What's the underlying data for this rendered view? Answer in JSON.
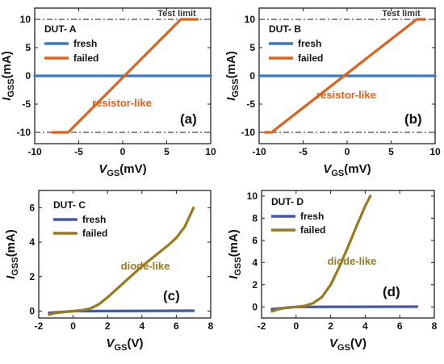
{
  "figure_colors": {
    "fresh": "#3a7ac2",
    "failed_resistor": "#e0621a",
    "failed_diode": "#9a7a1a",
    "fresh_diode": "#4059a8",
    "limit": "#444444"
  },
  "chart_data": [
    {
      "id": "a",
      "type": "line",
      "panel_label": "(a)",
      "dut": "DUT- A",
      "xlabel": {
        "main": "V",
        "sub": "GS",
        "unit": "(mV)"
      },
      "ylabel": {
        "main": "I",
        "sub": "GSS",
        "unit": "(mA)"
      },
      "xlim": [
        -10,
        10
      ],
      "ylim": [
        -12,
        12
      ],
      "xticks": [
        -10,
        -5,
        0,
        5,
        10
      ],
      "xtick_labels": [
        "-10",
        "-5",
        "0",
        "5",
        "10"
      ],
      "yticks": [
        -10,
        -5,
        0,
        5,
        10
      ],
      "ytick_labels": [
        "-10",
        "-5",
        "0",
        "5",
        "10"
      ],
      "test_limit": {
        "label": "Test limit",
        "values": [
          10,
          -10
        ]
      },
      "annotation": "resistor-like",
      "series": [
        {
          "name": "fresh",
          "color": "#3a7ac2",
          "x": [
            -10,
            10
          ],
          "y": [
            0,
            0
          ]
        },
        {
          "name": "failed",
          "color": "#e0621a",
          "x": [
            -8,
            -6.2,
            6.6,
            8.5
          ],
          "y": [
            -10,
            -10,
            10,
            10
          ]
        }
      ]
    },
    {
      "id": "b",
      "type": "line",
      "panel_label": "(b)",
      "dut": "DUT- B",
      "xlabel": {
        "main": "V",
        "sub": "GS",
        "unit": "(mV)"
      },
      "ylabel": {
        "main": "I",
        "sub": "GSS",
        "unit": "(mA)"
      },
      "xlim": [
        -10,
        10
      ],
      "ylim": [
        -12,
        12
      ],
      "xticks": [
        -10,
        -5,
        0,
        5,
        10
      ],
      "xtick_labels": [
        "-10",
        "-5",
        "0",
        "5",
        "10"
      ],
      "yticks": [
        -10,
        -5,
        0,
        5,
        10
      ],
      "ytick_labels": [
        "-10",
        "-5",
        "0",
        "5",
        "10"
      ],
      "test_limit": {
        "label": "Test limit",
        "values": [
          10,
          -10
        ]
      },
      "annotation": "resistor-like",
      "series": [
        {
          "name": "fresh",
          "color": "#3a7ac2",
          "x": [
            -10,
            10
          ],
          "y": [
            0,
            0
          ]
        },
        {
          "name": "failed",
          "color": "#e0621a",
          "x": [
            -9.3,
            -8.6,
            7.9,
            8.8
          ],
          "y": [
            -10,
            -10,
            10,
            10
          ]
        }
      ]
    },
    {
      "id": "c",
      "type": "line",
      "panel_label": "(c)",
      "dut": "DUT- C",
      "xlabel": {
        "main": "V",
        "sub": "GS",
        "unit": "(V)"
      },
      "ylabel": {
        "main": "I",
        "sub": "GSS",
        "unit": "(mA)"
      },
      "xlim": [
        -2,
        8
      ],
      "ylim": [
        -0.4,
        7
      ],
      "xticks": [
        -2,
        0,
        2,
        4,
        6,
        8
      ],
      "xtick_labels": [
        "-2",
        "0",
        "2",
        "4",
        "6",
        "8"
      ],
      "yticks": [
        0,
        2,
        4,
        6
      ],
      "ytick_labels": [
        "0",
        "2",
        "4",
        "6"
      ],
      "annotation": "diode-like",
      "series": [
        {
          "name": "fresh",
          "color": "#4059a8",
          "x": [
            -1.4,
            0,
            7
          ],
          "y": [
            -0.1,
            0,
            0.02
          ]
        },
        {
          "name": "failed",
          "color": "#9a7a1a",
          "x": [
            -1.4,
            -1,
            -0.5,
            0,
            0.5,
            1,
            1.5,
            2,
            2.5,
            3,
            3.5,
            4,
            4.5,
            5,
            5.5,
            6,
            6.5,
            7
          ],
          "y": [
            -0.2,
            -0.1,
            -0.05,
            0,
            0.05,
            0.15,
            0.4,
            0.8,
            1.25,
            1.7,
            2.15,
            2.6,
            3.0,
            3.4,
            3.8,
            4.25,
            4.9,
            6.0
          ]
        }
      ]
    },
    {
      "id": "d",
      "type": "line",
      "panel_label": "(d)",
      "dut": "DUT- D",
      "xlabel": {
        "main": "V",
        "sub": "GS",
        "unit": "(V)"
      },
      "ylabel": {
        "main": "I",
        "sub": "GSS",
        "unit": "(mA)"
      },
      "xlim": [
        -2,
        8
      ],
      "ylim": [
        -1,
        10.5
      ],
      "xticks": [
        -2,
        0,
        2,
        4,
        6,
        8
      ],
      "xtick_labels": [
        "-2",
        "0",
        "2",
        "4",
        "6",
        "8"
      ],
      "yticks": [
        0,
        2,
        4,
        6,
        8,
        10
      ],
      "ytick_labels": [
        "0",
        "2",
        "4",
        "6",
        "8",
        "10"
      ],
      "annotation": "diode-like",
      "series": [
        {
          "name": "fresh",
          "color": "#4059a8",
          "x": [
            -1.4,
            0,
            7
          ],
          "y": [
            -0.2,
            0,
            0.02
          ]
        },
        {
          "name": "failed",
          "color": "#9a7a1a",
          "x": [
            -1.4,
            -1,
            -0.5,
            0,
            0.5,
            1,
            1.5,
            2,
            2.5,
            3,
            3.5,
            4,
            4.3
          ],
          "y": [
            -0.4,
            -0.2,
            -0.05,
            0,
            0.1,
            0.35,
            0.9,
            2.0,
            3.6,
            5.4,
            7.3,
            9.1,
            10.0
          ]
        }
      ]
    }
  ]
}
